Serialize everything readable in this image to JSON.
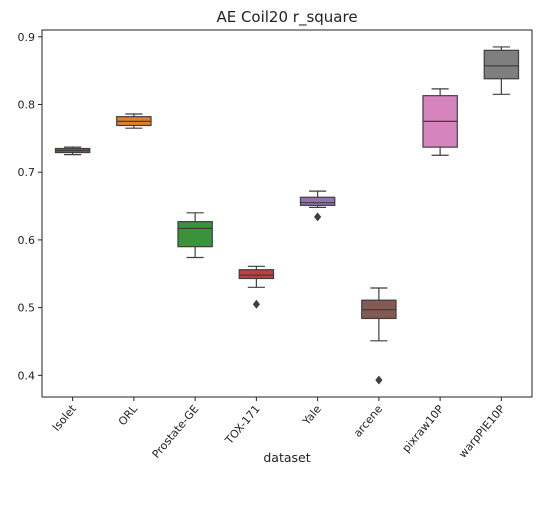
{
  "chart_data": {
    "type": "box",
    "title": "AE Coil20 r_square",
    "xlabel": "dataset",
    "ylabel": "",
    "ylim": [
      0.368,
      0.91
    ],
    "yticks": [
      0.4,
      0.5,
      0.6,
      0.7,
      0.8,
      0.9
    ],
    "ytick_labels": [
      "0.4",
      "0.5",
      "0.6",
      "0.7",
      "0.8",
      "0.9"
    ],
    "grid": false,
    "categories": [
      "Isolet",
      "ORL",
      "Prostate-GE",
      "TOX-171",
      "Yale",
      "arcene",
      "pixraw10P",
      "warpPIE10P"
    ],
    "series": [
      {
        "category": "Isolet",
        "color": "#3274a1",
        "whisker_low": 0.726,
        "q1": 0.729,
        "median": 0.732,
        "q3": 0.735,
        "whisker_high": 0.737,
        "outliers": []
      },
      {
        "category": "ORL",
        "color": "#e1812c",
        "whisker_low": 0.765,
        "q1": 0.769,
        "median": 0.775,
        "q3": 0.782,
        "whisker_high": 0.786,
        "outliers": []
      },
      {
        "category": "Prostate-GE",
        "color": "#3a923a",
        "whisker_low": 0.574,
        "q1": 0.59,
        "median": 0.617,
        "q3": 0.627,
        "whisker_high": 0.64,
        "outliers": []
      },
      {
        "category": "TOX-171",
        "color": "#c03d3e",
        "whisker_low": 0.53,
        "q1": 0.543,
        "median": 0.548,
        "q3": 0.556,
        "whisker_high": 0.561,
        "outliers": [
          0.505
        ]
      },
      {
        "category": "Yale",
        "color": "#9372b2",
        "whisker_low": 0.648,
        "q1": 0.651,
        "median": 0.655,
        "q3": 0.663,
        "whisker_high": 0.672,
        "outliers": [
          0.634
        ]
      },
      {
        "category": "arcene",
        "color": "#845b53",
        "whisker_low": 0.451,
        "q1": 0.484,
        "median": 0.497,
        "q3": 0.511,
        "whisker_high": 0.529,
        "outliers": [
          0.393
        ]
      },
      {
        "category": "pixraw10P",
        "color": "#d684bd",
        "whisker_low": 0.725,
        "q1": 0.737,
        "median": 0.775,
        "q3": 0.813,
        "whisker_high": 0.823,
        "outliers": []
      },
      {
        "category": "warpPIE10P",
        "color": "#7f7f7f",
        "whisker_low": 0.815,
        "q1": 0.838,
        "median": 0.857,
        "q3": 0.88,
        "whisker_high": 0.885,
        "outliers": []
      }
    ]
  }
}
